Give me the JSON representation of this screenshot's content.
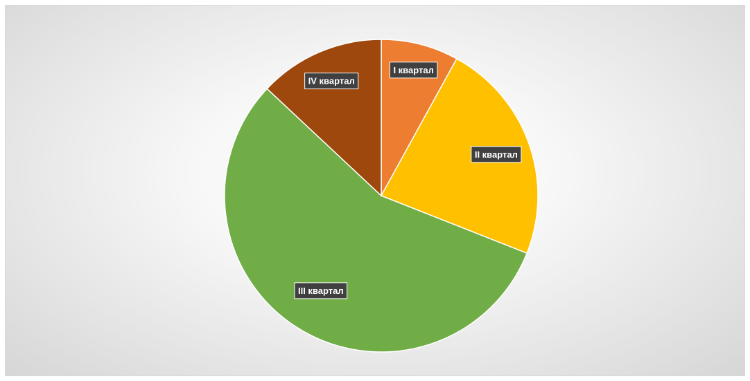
{
  "chart_data": {
    "type": "pie",
    "title": "",
    "categories": [
      "I квартал",
      "II квартал",
      "III квартал",
      "IV квартал"
    ],
    "values": [
      8,
      23,
      56,
      13
    ],
    "colors": [
      "#ed7d31",
      "#ffc000",
      "#70ad47",
      "#9e480e"
    ],
    "start_angle_deg": 0,
    "direction": "clockwise",
    "legend": "none",
    "data_labels": "category"
  }
}
